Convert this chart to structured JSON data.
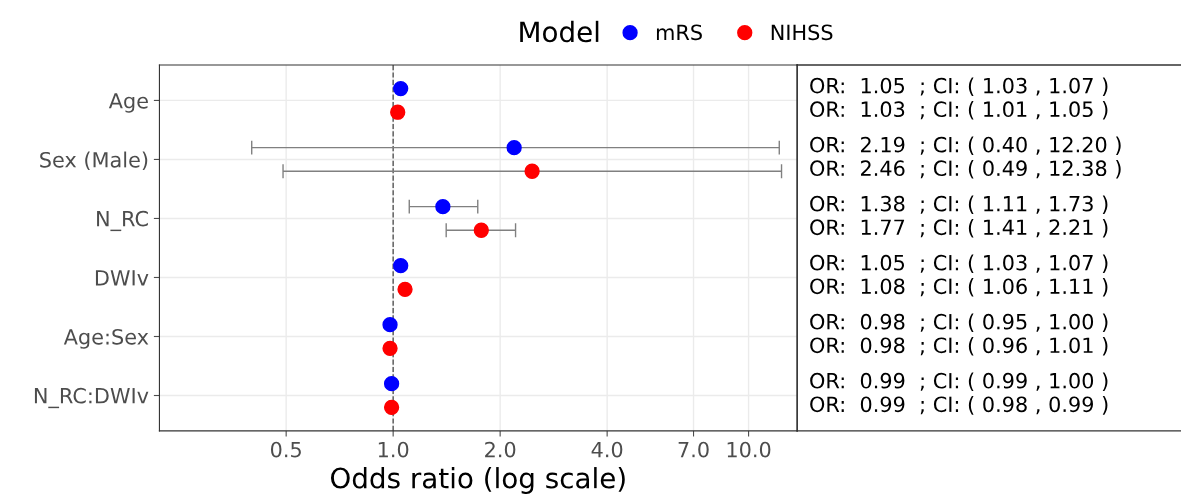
{
  "chart_data": {
    "type": "scatter",
    "orientation": "horizontal",
    "xlabel": "Odds ratio (log scale)",
    "legend_title": "Model",
    "legend": "top",
    "log": "x",
    "grid": true,
    "marker": "circle",
    "categories": [
      "Age",
      "Sex (Male)",
      "N_RC",
      "DWIv",
      "Age:Sex",
      "N_RC:DWIv"
    ],
    "xlim": [
      0.22,
      13.7
    ],
    "xticks": [
      {
        "value": 0.5,
        "label": "0.5"
      },
      {
        "value": 1,
        "label": "1.0"
      },
      {
        "value": 2,
        "label": "2.0"
      },
      {
        "value": 4,
        "label": "4.0"
      },
      {
        "value": 7,
        "label": "7.0"
      },
      {
        "value": 10,
        "label": "10.0"
      }
    ],
    "ref_lines": [
      {
        "axis": "x",
        "value": 1,
        "label": null,
        "line_style": "dashed",
        "color": "#555555"
      }
    ],
    "series": [
      {
        "name": "mRS",
        "color": "#0000ff",
        "values": [
          1.05,
          2.19,
          1.38,
          1.05,
          0.98,
          0.99
        ],
        "errors": [
          null,
          [
            0.4,
            12.2
          ],
          [
            1.11,
            1.73
          ],
          null,
          null,
          [
            0.99,
            1.0
          ]
        ]
      },
      {
        "name": "NIHSS",
        "color": "#ff0000",
        "values": [
          1.03,
          2.46,
          1.77,
          1.08,
          0.98,
          0.99
        ],
        "errors": [
          null,
          [
            0.49,
            12.38
          ],
          [
            1.41,
            2.21
          ],
          null,
          null,
          [
            0.98,
            0.99
          ]
        ]
      }
    ],
    "annotations": [
      "OR:  1.05  ; CI: ( 1.03 , 1.07 )",
      "OR:  1.03  ; CI: ( 1.01 , 1.05 )",
      "OR:  2.19  ; CI: ( 0.40 , 12.20 )",
      "OR:  2.46  ; CI: ( 0.49 , 12.38 )",
      "OR:  1.38  ; CI: ( 1.11 , 1.73 )",
      "OR:  1.77  ; CI: ( 1.41 , 2.21 )",
      "OR:  1.05  ; CI: ( 1.03 , 1.07 )",
      "OR:  1.08  ; CI: ( 1.06 , 1.11 )",
      "OR:  0.98  ; CI: ( 0.95 , 1.00 )",
      "OR:  0.98  ; CI: ( 0.96 , 1.01 )",
      "OR:  0.99  ; CI: ( 0.99 , 1.00 )",
      "OR:  0.99  ; CI: ( 0.98 , 0.99 )"
    ]
  }
}
